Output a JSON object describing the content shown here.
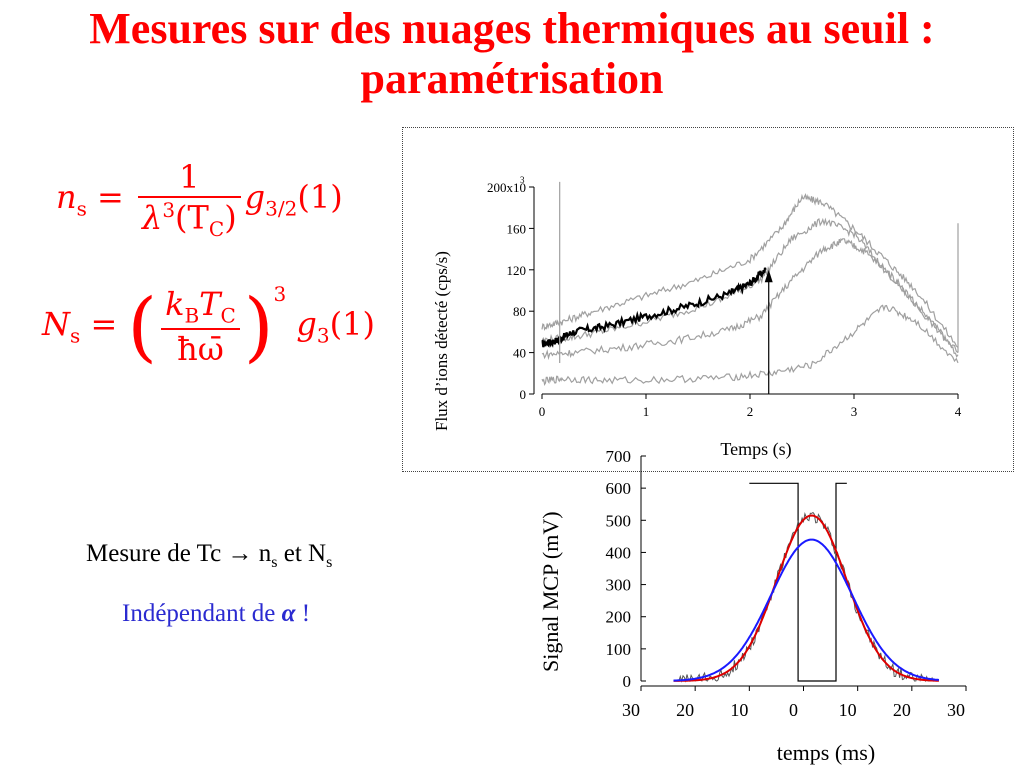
{
  "slide": {
    "title_line1": "Mesures sur des nuages thermiques au seuil :",
    "title_line2": "paramétrisation",
    "tc_line": {
      "prefix": "Mesure de Tc ",
      "arrow": "→",
      "ns_base": " n",
      "ns_sub": "s",
      "et": " et N",
      "Ns_sub": "s"
    },
    "indep_line": {
      "prefix": "Indépendant de ",
      "alpha": "α",
      "suffix": " !"
    }
  },
  "formulas": {
    "f1": {
      "lhs_var": "n",
      "lhs_sub": "s",
      "eq": " = ",
      "num": "1",
      "den_var": "λ",
      "den_exp": "3",
      "den_arg": "(T",
      "den_arg_sub": "C",
      "den_close": ")",
      "g": "g",
      "g_sub": "3/2",
      "g_arg": "(1)"
    },
    "f2": {
      "lhs_var": "N",
      "lhs_sub": "s",
      "eq": " = ",
      "num_var": "k",
      "num_sub": "B",
      "num_var2": "T",
      "num_sub2": "C",
      "den": "ħω̄",
      "exp": "3",
      "g": "g",
      "g_sub": "3",
      "g_arg": "(1)"
    }
  },
  "colors": {
    "title": "#ff0000",
    "formula": "#ff0000",
    "indep_text": "#2a2ad0",
    "series_black": "#000000",
    "series_grey": "#a0a0a0",
    "fit_red": "#dd0000",
    "fit_blue": "#1a1aff"
  },
  "chart_data": [
    {
      "type": "line",
      "xlabel": "Temps (s)",
      "ylabel": "Flux d’ions détecté (cps/s)",
      "xlim": [
        0,
        4
      ],
      "ylim": [
        0,
        200000
      ],
      "x_ticks": [
        "0",
        "1",
        "2",
        "3",
        "4"
      ],
      "y_ticks": [
        "0",
        "40",
        "80",
        "120",
        "160",
        "200x10"
      ],
      "y_tick_top_exp": "3",
      "grid": false,
      "series": [
        {
          "color_role": "black",
          "x": [
            0.0,
            0.15,
            0.3,
            0.6,
            1.0,
            1.4,
            1.8,
            2.0,
            2.15
          ],
          "y": [
            48000,
            52000,
            60000,
            65000,
            75000,
            85000,
            97000,
            107000,
            120000
          ]
        },
        {
          "color_role": "grey",
          "x": [
            0.0,
            0.2,
            0.5,
            1.0,
            1.5,
            2.0,
            2.3,
            2.5,
            2.7,
            3.0,
            3.3,
            3.6,
            4.0
          ],
          "y": [
            65000,
            70000,
            80000,
            95000,
            110000,
            130000,
            160000,
            190000,
            185000,
            160000,
            130000,
            100000,
            45000
          ]
        },
        {
          "color_role": "grey",
          "x": [
            0.0,
            0.3,
            0.7,
            1.2,
            1.7,
            2.1,
            2.4,
            2.7,
            3.0,
            3.3,
            3.6,
            4.0
          ],
          "y": [
            52000,
            55000,
            63000,
            75000,
            90000,
            110000,
            150000,
            168000,
            155000,
            120000,
            85000,
            40000
          ]
        },
        {
          "color_role": "grey",
          "x": [
            0.0,
            0.3,
            0.8,
            1.3,
            1.8,
            2.1,
            2.4,
            2.7,
            2.9,
            3.1,
            3.4,
            3.7,
            4.0
          ],
          "y": [
            38000,
            40000,
            45000,
            52000,
            62000,
            75000,
            110000,
            140000,
            148000,
            138000,
            110000,
            75000,
            38000
          ]
        },
        {
          "color_role": "grey",
          "x": [
            0.0,
            0.2,
            0.6,
            1.2,
            1.8,
            2.2,
            2.6,
            3.0,
            3.3,
            3.6,
            4.0
          ],
          "y": [
            12000,
            15000,
            13000,
            14000,
            16000,
            20000,
            28000,
            60000,
            85000,
            70000,
            30000
          ]
        }
      ],
      "annotation_arrow_x": 2.18
    },
    {
      "type": "line",
      "xlabel": "temps (ms)",
      "ylabel": "Signal MCP (mV)",
      "xlim": [
        -30,
        30
      ],
      "ylim": [
        0,
        700
      ],
      "x_ticks": [
        "30",
        "20",
        "10",
        "0",
        "10",
        "20",
        "30"
      ],
      "y_ticks": [
        "0",
        "100",
        "200",
        "300",
        "400",
        "500",
        "600",
        "700"
      ],
      "grid": false,
      "gaussians": [
        {
          "color_role": "red",
          "amplitude": 515,
          "center": 1.5,
          "sigma": 6.5,
          "x_range": [
            -24,
            25
          ]
        },
        {
          "color_role": "blue",
          "amplitude": 440,
          "center": 1.5,
          "sigma": 7.5,
          "x_range": [
            -24,
            25
          ]
        }
      ],
      "gate_window": {
        "x": [
          -10,
          -1,
          -1,
          6,
          6,
          8
        ],
        "level": 615,
        "low": 0
      }
    }
  ]
}
